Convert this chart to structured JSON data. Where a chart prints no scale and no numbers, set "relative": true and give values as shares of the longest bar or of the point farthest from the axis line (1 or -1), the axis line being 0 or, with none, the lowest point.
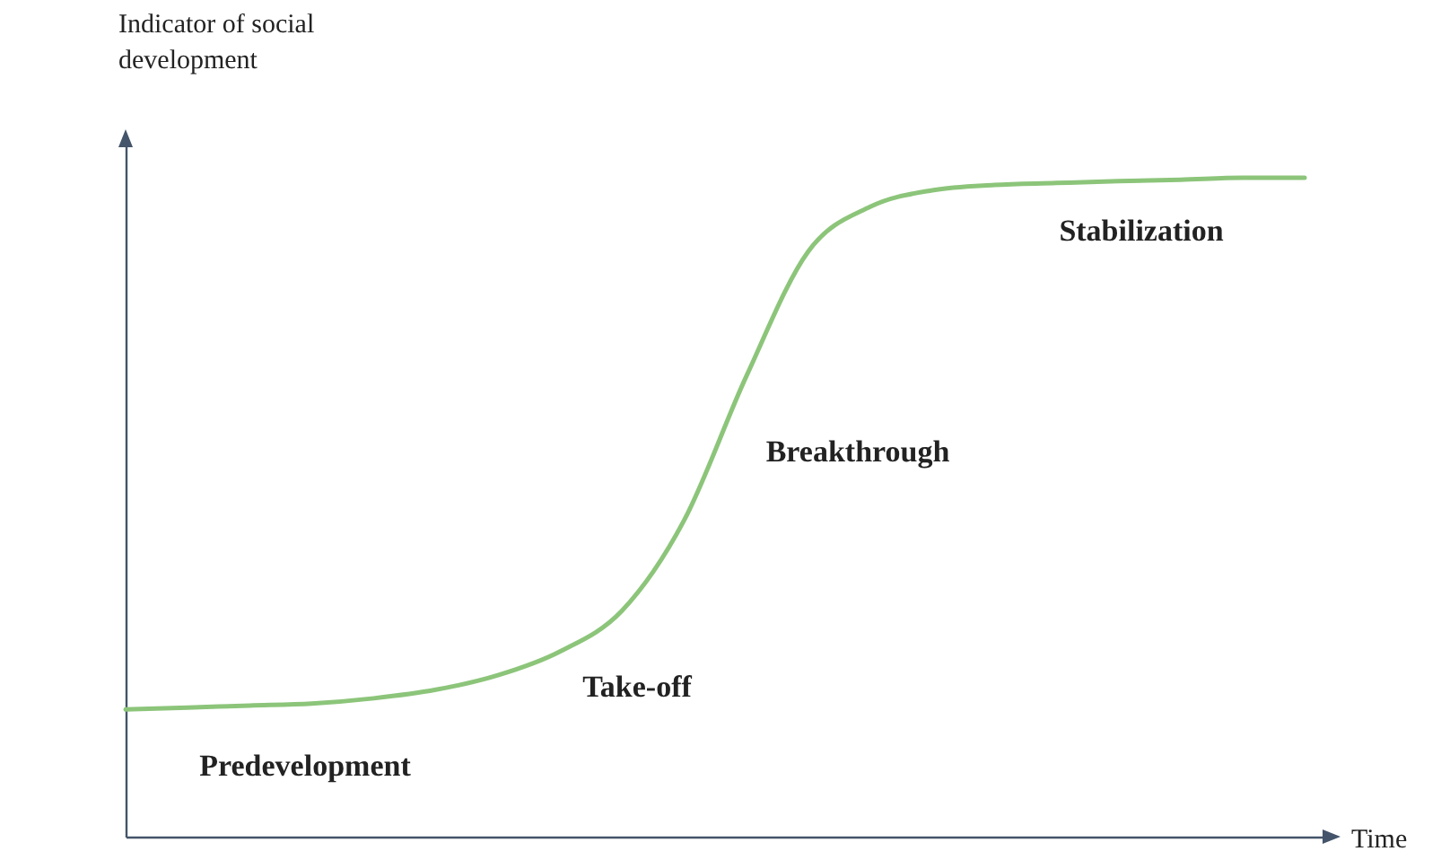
{
  "chart_data": {
    "type": "line",
    "relative": true,
    "xlabel": "Time",
    "ylabel": "Indicator of social development",
    "categories": [
      null,
      null,
      null,
      null,
      null,
      null,
      null,
      null,
      null,
      null,
      null,
      null,
      null,
      null,
      null,
      null,
      null,
      null,
      null,
      null
    ],
    "series": [
      {
        "color": "#8cc57a",
        "values": [
          0.193,
          0.196,
          0.199,
          0.202,
          0.21,
          0.223,
          0.245,
          0.281,
          0.343,
          0.48,
          0.698,
          0.888,
          0.956,
          0.981,
          0.989,
          0.992,
          0.995,
          0.997,
          1,
          1
        ]
      }
    ],
    "annotations": [
      "Predevelopment",
      "Take-off",
      "Breakthrough",
      "Stabilization"
    ],
    "marker": "none",
    "line_style": "solid"
  }
}
